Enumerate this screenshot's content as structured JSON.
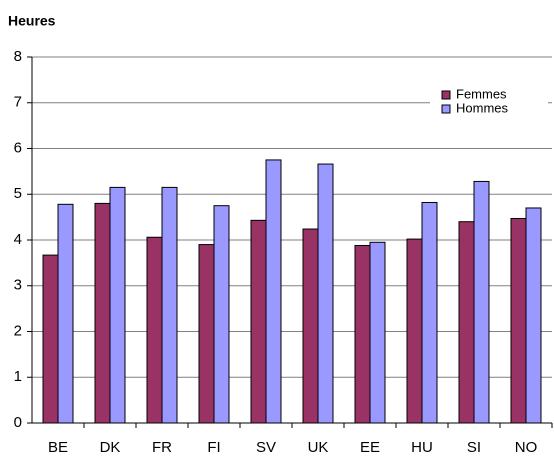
{
  "chart_data": {
    "type": "bar",
    "title": "Heures",
    "categories": [
      "BE",
      "DK",
      "FR",
      "FI",
      "SV",
      "UK",
      "EE",
      "HU",
      "SI",
      "NO"
    ],
    "series": [
      {
        "name": "Femmes",
        "color": "#993366",
        "values": [
          3.67,
          4.8,
          4.06,
          3.9,
          4.43,
          4.24,
          3.88,
          4.02,
          4.4,
          4.47
        ]
      },
      {
        "name": "Hommes",
        "color": "#9999ff",
        "values": [
          4.78,
          5.15,
          5.15,
          4.75,
          5.75,
          5.66,
          3.95,
          4.82,
          5.28,
          4.7
        ]
      }
    ],
    "ylim": [
      0,
      8
    ],
    "yticks": [
      0,
      1,
      2,
      3,
      4,
      5,
      6,
      7,
      8
    ],
    "grid": true,
    "legend": "top-right"
  }
}
